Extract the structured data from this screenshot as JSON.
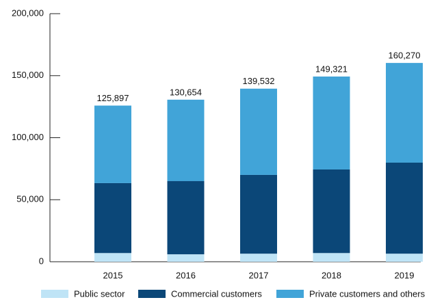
{
  "chart_data": {
    "type": "stacked_bar",
    "categories": [
      "2015",
      "2016",
      "2017",
      "2018",
      "2019"
    ],
    "series": [
      {
        "name": "Public sector",
        "color": "#bfe4f6",
        "values": [
          7000,
          6000,
          6500,
          7000,
          6500
        ]
      },
      {
        "name": "Commercial customers",
        "color": "#0b4778",
        "values": [
          56400,
          59000,
          63500,
          67400,
          73400
        ]
      },
      {
        "name": "Private customers and others",
        "color": "#41a4d8",
        "values": [
          62497,
          65654,
          69532,
          74921,
          80370
        ]
      }
    ],
    "totals": [
      125897,
      130654,
      139532,
      149321,
      160270
    ],
    "total_labels": [
      "125,897",
      "130,654",
      "139,532",
      "149,321",
      "160,270"
    ],
    "ylim": [
      0,
      200000
    ],
    "yticks": [
      0,
      {
        "value": 50000,
        "label": "50,000"
      },
      {
        "value": 100000,
        "label": "100,000"
      },
      {
        "value": 150000,
        "label": "150,000"
      },
      {
        "value": 200000,
        "label": "200,000"
      }
    ],
    "grid": false
  }
}
